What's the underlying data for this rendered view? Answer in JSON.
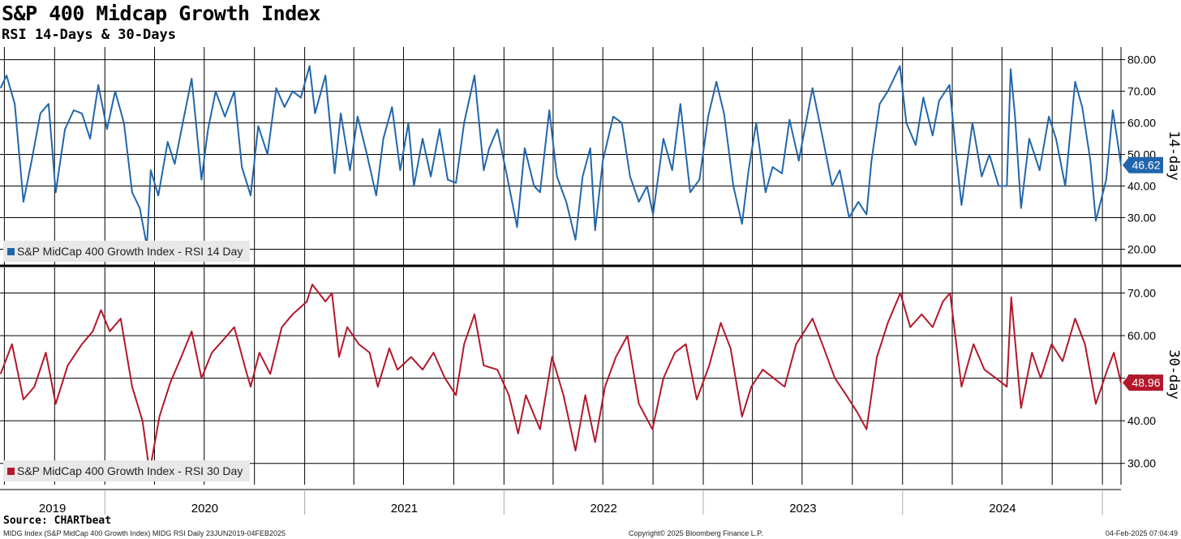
{
  "title": "S&P 400 Midcap Growth Index",
  "subtitle": "RSI 14-Days & 30-Days",
  "source": "Source: CHARTbeat",
  "footer": {
    "left": "MIDG Index (S&P MidCap 400 Growth Index) MIDG RSI  Daily 23JUN2019-04FEB2025",
    "center": "Copyright© 2025 Bloomberg Finance L.P.",
    "right": "04-Feb-2025 07:04:49"
  },
  "colors": {
    "rsi14": "#2166ac",
    "rsi30": "#b2182b",
    "grid": "#000000"
  },
  "chart_data": [
    {
      "type": "line",
      "panel_label": "14-day",
      "legend": "S&P MidCap 400 Growth Index - RSI 14 Day",
      "last_value_label": "46.62",
      "ylim": [
        15,
        84
      ],
      "yticks": [
        20,
        30,
        40,
        50,
        60,
        70,
        80
      ],
      "ytick_labels": [
        "20.00",
        "30.00",
        "40.00",
        "50.00",
        "60.00",
        "70.00",
        "80.00"
      ],
      "x_range": [
        "2019-06-23",
        "2025-02-04"
      ],
      "series": [
        {
          "values": [
            [
              "2019-06-24",
              71
            ],
            [
              "2019-07-05",
              75
            ],
            [
              "2019-07-20",
              66
            ],
            [
              "2019-08-05",
              35
            ],
            [
              "2019-08-20",
              48
            ],
            [
              "2019-09-05",
              63
            ],
            [
              "2019-09-20",
              66
            ],
            [
              "2019-10-03",
              38
            ],
            [
              "2019-10-20",
              58
            ],
            [
              "2019-11-05",
              64
            ],
            [
              "2019-11-20",
              63
            ],
            [
              "2019-12-05",
              55
            ],
            [
              "2019-12-20",
              72
            ],
            [
              "2020-01-05",
              58
            ],
            [
              "2020-01-20",
              70
            ],
            [
              "2020-02-05",
              60
            ],
            [
              "2020-02-20",
              38
            ],
            [
              "2020-03-05",
              33
            ],
            [
              "2020-03-18",
              21
            ],
            [
              "2020-03-25",
              45
            ],
            [
              "2020-04-08",
              37
            ],
            [
              "2020-04-25",
              54
            ],
            [
              "2020-05-08",
              47
            ],
            [
              "2020-05-25",
              62
            ],
            [
              "2020-06-08",
              74
            ],
            [
              "2020-06-26",
              42
            ],
            [
              "2020-07-08",
              58
            ],
            [
              "2020-07-22",
              70
            ],
            [
              "2020-08-08",
              62
            ],
            [
              "2020-08-25",
              70
            ],
            [
              "2020-09-08",
              46
            ],
            [
              "2020-09-24",
              37
            ],
            [
              "2020-10-08",
              59
            ],
            [
              "2020-10-25",
              50
            ],
            [
              "2020-11-10",
              71
            ],
            [
              "2020-11-25",
              65
            ],
            [
              "2020-12-10",
              70
            ],
            [
              "2020-12-25",
              68
            ],
            [
              "2021-01-10",
              78
            ],
            [
              "2021-01-20",
              63
            ],
            [
              "2021-02-08",
              75
            ],
            [
              "2021-02-25",
              44
            ],
            [
              "2021-03-08",
              63
            ],
            [
              "2021-03-25",
              45
            ],
            [
              "2021-04-08",
              62
            ],
            [
              "2021-04-25",
              50
            ],
            [
              "2021-05-12",
              37
            ],
            [
              "2021-05-25",
              55
            ],
            [
              "2021-06-10",
              65
            ],
            [
              "2021-06-25",
              45
            ],
            [
              "2021-07-10",
              60
            ],
            [
              "2021-07-20",
              40
            ],
            [
              "2021-08-05",
              55
            ],
            [
              "2021-08-20",
              43
            ],
            [
              "2021-09-05",
              58
            ],
            [
              "2021-09-20",
              42
            ],
            [
              "2021-10-05",
              41
            ],
            [
              "2021-10-20",
              60
            ],
            [
              "2021-11-08",
              75
            ],
            [
              "2021-11-25",
              45
            ],
            [
              "2021-12-05",
              52
            ],
            [
              "2021-12-20",
              58
            ],
            [
              "2022-01-08",
              42
            ],
            [
              "2022-01-25",
              27
            ],
            [
              "2022-02-08",
              52
            ],
            [
              "2022-02-25",
              40
            ],
            [
              "2022-03-08",
              38
            ],
            [
              "2022-03-25",
              64
            ],
            [
              "2022-04-08",
              43
            ],
            [
              "2022-04-25",
              35
            ],
            [
              "2022-05-12",
              23
            ],
            [
              "2022-05-25",
              43
            ],
            [
              "2022-06-08",
              52
            ],
            [
              "2022-06-17",
              26
            ],
            [
              "2022-07-01",
              48
            ],
            [
              "2022-07-20",
              62
            ],
            [
              "2022-08-05",
              60
            ],
            [
              "2022-08-20",
              43
            ],
            [
              "2022-09-05",
              35
            ],
            [
              "2022-09-20",
              40
            ],
            [
              "2022-10-01",
              31
            ],
            [
              "2022-10-20",
              55
            ],
            [
              "2022-11-05",
              45
            ],
            [
              "2022-11-20",
              66
            ],
            [
              "2022-12-08",
              38
            ],
            [
              "2022-12-25",
              42
            ],
            [
              "2023-01-10",
              62
            ],
            [
              "2023-01-25",
              73
            ],
            [
              "2023-02-08",
              63
            ],
            [
              "2023-02-25",
              40
            ],
            [
              "2023-03-13",
              28
            ],
            [
              "2023-03-25",
              45
            ],
            [
              "2023-04-08",
              60
            ],
            [
              "2023-04-25",
              38
            ],
            [
              "2023-05-08",
              46
            ],
            [
              "2023-05-25",
              44
            ],
            [
              "2023-06-08",
              61
            ],
            [
              "2023-06-25",
              48
            ],
            [
              "2023-07-20",
              71
            ],
            [
              "2023-08-08",
              55
            ],
            [
              "2023-08-25",
              40
            ],
            [
              "2023-09-08",
              45
            ],
            [
              "2023-09-25",
              30
            ],
            [
              "2023-10-12",
              35
            ],
            [
              "2023-10-27",
              31
            ],
            [
              "2023-11-05",
              48
            ],
            [
              "2023-11-20",
              66
            ],
            [
              "2023-12-05",
              70
            ],
            [
              "2023-12-27",
              78
            ],
            [
              "2024-01-08",
              60
            ],
            [
              "2024-01-25",
              53
            ],
            [
              "2024-02-08",
              68
            ],
            [
              "2024-02-25",
              56
            ],
            [
              "2024-03-08",
              67
            ],
            [
              "2024-03-27",
              72
            ],
            [
              "2024-04-08",
              50
            ],
            [
              "2024-04-18",
              34
            ],
            [
              "2024-05-08",
              60
            ],
            [
              "2024-05-25",
              43
            ],
            [
              "2024-06-08",
              50
            ],
            [
              "2024-06-25",
              40
            ],
            [
              "2024-07-10",
              40
            ],
            [
              "2024-07-17",
              77
            ],
            [
              "2024-07-25",
              62
            ],
            [
              "2024-08-05",
              33
            ],
            [
              "2024-08-20",
              55
            ],
            [
              "2024-09-08",
              45
            ],
            [
              "2024-09-25",
              62
            ],
            [
              "2024-10-08",
              55
            ],
            [
              "2024-10-25",
              40
            ],
            [
              "2024-11-12",
              73
            ],
            [
              "2024-11-25",
              65
            ],
            [
              "2024-12-10",
              48
            ],
            [
              "2024-12-20",
              29
            ],
            [
              "2025-01-08",
              42
            ],
            [
              "2025-01-20",
              64
            ],
            [
              "2025-01-28",
              55
            ],
            [
              "2025-02-04",
              46.62
            ]
          ]
        }
      ]
    },
    {
      "type": "line",
      "panel_label": "30-day",
      "legend": "S&P MidCap 400 Growth Index - RSI 30 Day",
      "last_value_label": "48.96",
      "ylim": [
        25,
        76
      ],
      "yticks": [
        30,
        40,
        50,
        60,
        70
      ],
      "ytick_labels": [
        "30.00",
        "40.00",
        "50.00",
        "60.00",
        "70.00"
      ],
      "x_range": [
        "2019-06-23",
        "2025-02-04"
      ],
      "x_tick_labels": [
        "2019",
        "2020",
        "2021",
        "2022",
        "2023",
        "2024"
      ],
      "series": [
        {
          "values": [
            [
              "2019-06-24",
              51
            ],
            [
              "2019-07-15",
              58
            ],
            [
              "2019-08-05",
              45
            ],
            [
              "2019-08-25",
              48
            ],
            [
              "2019-09-15",
              56
            ],
            [
              "2019-10-03",
              44
            ],
            [
              "2019-10-25",
              53
            ],
            [
              "2019-11-20",
              58
            ],
            [
              "2019-12-10",
              61
            ],
            [
              "2019-12-25",
              66
            ],
            [
              "2020-01-10",
              61
            ],
            [
              "2020-01-30",
              64
            ],
            [
              "2020-02-20",
              48
            ],
            [
              "2020-03-10",
              40
            ],
            [
              "2020-03-23",
              28
            ],
            [
              "2020-04-10",
              41
            ],
            [
              "2020-04-30",
              49
            ],
            [
              "2020-05-20",
              55
            ],
            [
              "2020-06-08",
              61
            ],
            [
              "2020-06-26",
              50
            ],
            [
              "2020-07-15",
              56
            ],
            [
              "2020-08-05",
              59
            ],
            [
              "2020-08-25",
              62
            ],
            [
              "2020-09-15",
              52
            ],
            [
              "2020-09-24",
              48
            ],
            [
              "2020-10-10",
              56
            ],
            [
              "2020-10-30",
              51
            ],
            [
              "2020-11-20",
              62
            ],
            [
              "2020-12-10",
              65
            ],
            [
              "2021-01-05",
              68
            ],
            [
              "2021-01-15",
              72
            ],
            [
              "2021-02-08",
              68
            ],
            [
              "2021-02-20",
              70
            ],
            [
              "2021-03-05",
              55
            ],
            [
              "2021-03-20",
              62
            ],
            [
              "2021-04-10",
              58
            ],
            [
              "2021-04-30",
              56
            ],
            [
              "2021-05-15",
              48
            ],
            [
              "2021-06-05",
              57
            ],
            [
              "2021-06-20",
              52
            ],
            [
              "2021-07-15",
              55
            ],
            [
              "2021-08-05",
              52
            ],
            [
              "2021-08-25",
              56
            ],
            [
              "2021-09-15",
              50
            ],
            [
              "2021-10-05",
              46
            ],
            [
              "2021-10-20",
              58
            ],
            [
              "2021-11-08",
              65
            ],
            [
              "2021-11-25",
              53
            ],
            [
              "2021-12-20",
              52
            ],
            [
              "2022-01-10",
              46
            ],
            [
              "2022-01-27",
              37
            ],
            [
              "2022-02-10",
              46
            ],
            [
              "2022-03-08",
              38
            ],
            [
              "2022-03-30",
              55
            ],
            [
              "2022-04-20",
              46
            ],
            [
              "2022-05-12",
              33
            ],
            [
              "2022-05-30",
              46
            ],
            [
              "2022-06-17",
              35
            ],
            [
              "2022-07-05",
              48
            ],
            [
              "2022-07-25",
              55
            ],
            [
              "2022-08-15",
              60
            ],
            [
              "2022-09-05",
              44
            ],
            [
              "2022-09-30",
              38
            ],
            [
              "2022-10-20",
              50
            ],
            [
              "2022-11-10",
              56
            ],
            [
              "2022-11-30",
              58
            ],
            [
              "2022-12-20",
              45
            ],
            [
              "2023-01-12",
              53
            ],
            [
              "2023-02-02",
              63
            ],
            [
              "2023-02-20",
              57
            ],
            [
              "2023-03-13",
              41
            ],
            [
              "2023-03-30",
              48
            ],
            [
              "2023-04-20",
              52
            ],
            [
              "2023-05-10",
              50
            ],
            [
              "2023-05-30",
              48
            ],
            [
              "2023-06-20",
              58
            ],
            [
              "2023-07-20",
              64
            ],
            [
              "2023-08-10",
              57
            ],
            [
              "2023-08-30",
              50
            ],
            [
              "2023-09-20",
              46
            ],
            [
              "2023-10-10",
              42
            ],
            [
              "2023-10-27",
              38
            ],
            [
              "2023-11-15",
              55
            ],
            [
              "2023-12-05",
              63
            ],
            [
              "2023-12-28",
              70
            ],
            [
              "2024-01-15",
              62
            ],
            [
              "2024-02-05",
              65
            ],
            [
              "2024-02-25",
              62
            ],
            [
              "2024-03-15",
              68
            ],
            [
              "2024-03-28",
              70
            ],
            [
              "2024-04-18",
              48
            ],
            [
              "2024-05-10",
              58
            ],
            [
              "2024-05-30",
              52
            ],
            [
              "2024-06-20",
              50
            ],
            [
              "2024-07-10",
              48
            ],
            [
              "2024-07-18",
              69
            ],
            [
              "2024-08-05",
              43
            ],
            [
              "2024-08-25",
              56
            ],
            [
              "2024-09-10",
              50
            ],
            [
              "2024-09-30",
              58
            ],
            [
              "2024-10-20",
              54
            ],
            [
              "2024-11-12",
              64
            ],
            [
              "2024-11-30",
              58
            ],
            [
              "2024-12-20",
              44
            ],
            [
              "2025-01-10",
              52
            ],
            [
              "2025-01-22",
              56
            ],
            [
              "2025-02-04",
              48.96
            ]
          ]
        }
      ]
    }
  ]
}
